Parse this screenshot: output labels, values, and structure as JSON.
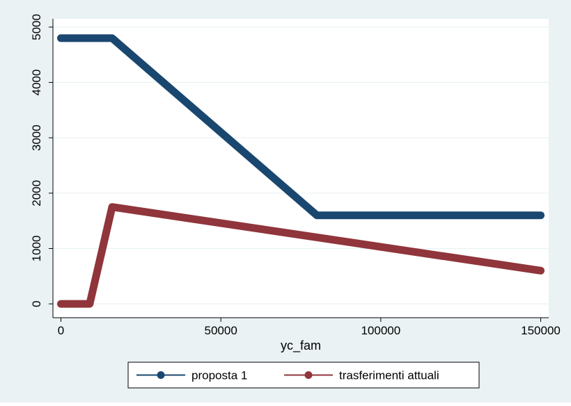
{
  "chart_data": {
    "type": "line",
    "title": "",
    "xlabel": "yc_fam",
    "ylabel": "",
    "xlim": [
      -2500,
      152500
    ],
    "ylim": [
      -250,
      5150
    ],
    "x_ticks": [
      0,
      50000,
      100000,
      150000
    ],
    "x_tick_labels": [
      "0",
      "50000",
      "100000",
      "150000"
    ],
    "y_ticks": [
      0,
      1000,
      2000,
      3000,
      4000,
      5000
    ],
    "y_tick_labels": [
      "0",
      "1000",
      "2000",
      "3000",
      "4000",
      "5000"
    ],
    "grid": "horizontal",
    "legend_position": "bottom",
    "series": [
      {
        "name": "proposta 1",
        "color": "#1a476f",
        "x": [
          0,
          16000,
          80000,
          150000
        ],
        "y": [
          4800,
          4800,
          1600,
          1600
        ]
      },
      {
        "name": "trasferimenti attuali",
        "color": "#90353b",
        "x": [
          0,
          9000,
          16000,
          150000
        ],
        "y": [
          0,
          0,
          1750,
          600
        ]
      }
    ]
  },
  "colors": {
    "outer_background": "#eaf2f3",
    "plot_background": "#ffffff",
    "grid": "#eaf2f3"
  }
}
